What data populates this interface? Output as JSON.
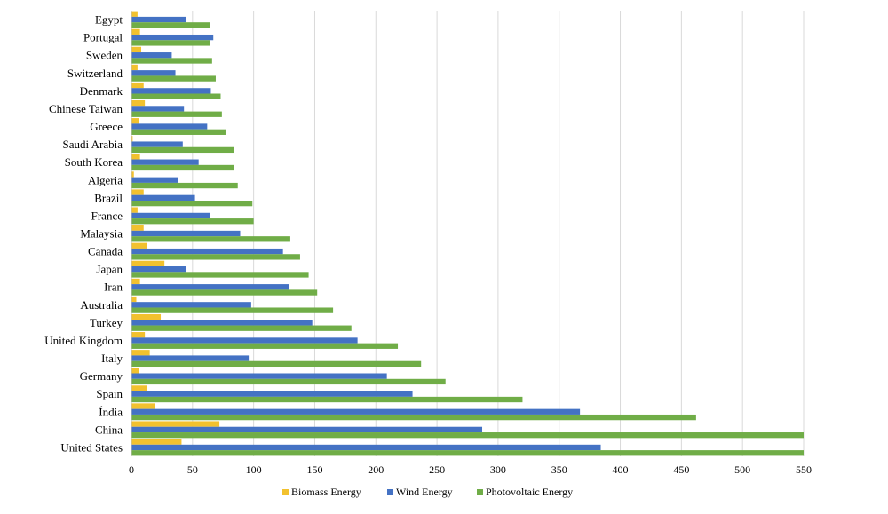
{
  "chart_data": {
    "type": "bar",
    "orientation": "horizontal",
    "title": "",
    "xlabel": "",
    "ylabel": "",
    "xlim": [
      0,
      550
    ],
    "xticks": [
      0,
      50,
      100,
      150,
      200,
      250,
      300,
      350,
      400,
      450,
      500,
      550
    ],
    "grid": true,
    "legend_position": "bottom",
    "categories": [
      "Egypt",
      "Portugal",
      "Sweden",
      "Switzerland",
      "Denmark",
      "Chinese Taiwan",
      "Greece",
      "Saudi Arabia",
      "South Korea",
      "Algeria",
      "Brazil",
      "France",
      "Malaysia",
      "Canada",
      "Japan",
      "Iran",
      "Australia",
      "Turkey",
      "United Kingdom",
      "Italy",
      "Germany",
      "Spain",
      "Índia",
      "China",
      "United States"
    ],
    "series": [
      {
        "name": "Biomass Energy",
        "color": "#f2c12e",
        "values": [
          5,
          7,
          8,
          5,
          10,
          11,
          6,
          1,
          7,
          2,
          10,
          5,
          10,
          13,
          27,
          7,
          4,
          24,
          11,
          15,
          6,
          13,
          19,
          72,
          41
        ]
      },
      {
        "name": "Wind Energy",
        "color": "#4472c4",
        "values": [
          45,
          67,
          33,
          36,
          65,
          43,
          62,
          42,
          55,
          38,
          52,
          64,
          89,
          124,
          45,
          129,
          98,
          148,
          185,
          96,
          209,
          230,
          367,
          287,
          384
        ]
      },
      {
        "name": "Photovoltaic Energy",
        "color": "#70ad47",
        "values": [
          64,
          64,
          66,
          69,
          73,
          74,
          77,
          84,
          84,
          87,
          99,
          100,
          130,
          138,
          145,
          152,
          165,
          180,
          218,
          237,
          257,
          320,
          462,
          550,
          550
        ]
      }
    ]
  }
}
